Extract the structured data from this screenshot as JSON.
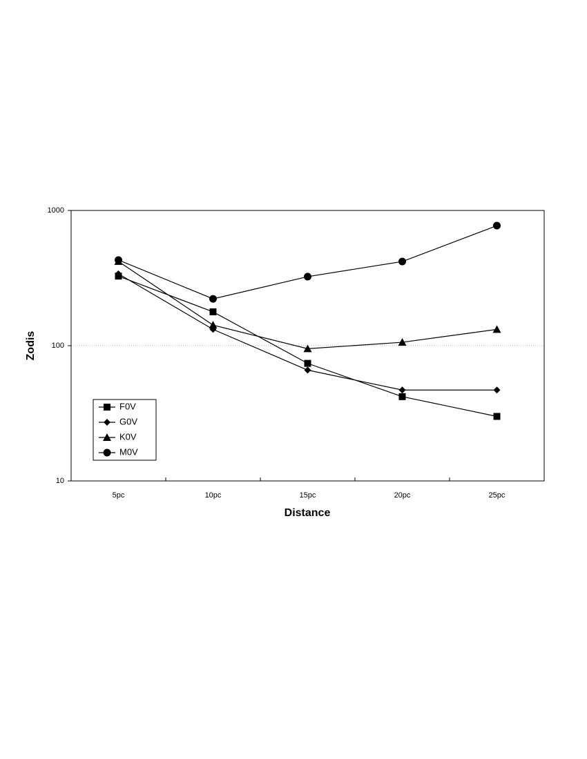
{
  "chart_data": {
    "type": "line",
    "x_label": "Distance",
    "y_label": "Zodis",
    "categories": [
      "5pc",
      "10pc",
      "15pc",
      "20pc",
      "25pc"
    ],
    "series": [
      {
        "name": "F0V",
        "color": "#000000",
        "marker": "square",
        "values": [
          327,
          178,
          74,
          42,
          30
        ]
      },
      {
        "name": "G0V",
        "color": "#000000",
        "marker": "diamond",
        "values": [
          340,
          132,
          66,
          47,
          47
        ]
      },
      {
        "name": "K0V",
        "color": "#000000",
        "marker": "triangle",
        "values": [
          420,
          142,
          95,
          106,
          132
        ]
      },
      {
        "name": "M0V",
        "color": "#000000",
        "marker": "circle",
        "values": [
          430,
          222,
          324,
          419,
          772
        ]
      }
    ],
    "log_y": true,
    "ylim": [
      10,
      1000
    ],
    "yticks": [
      10,
      100,
      1000
    ],
    "grid": true,
    "legend": "lower left"
  }
}
